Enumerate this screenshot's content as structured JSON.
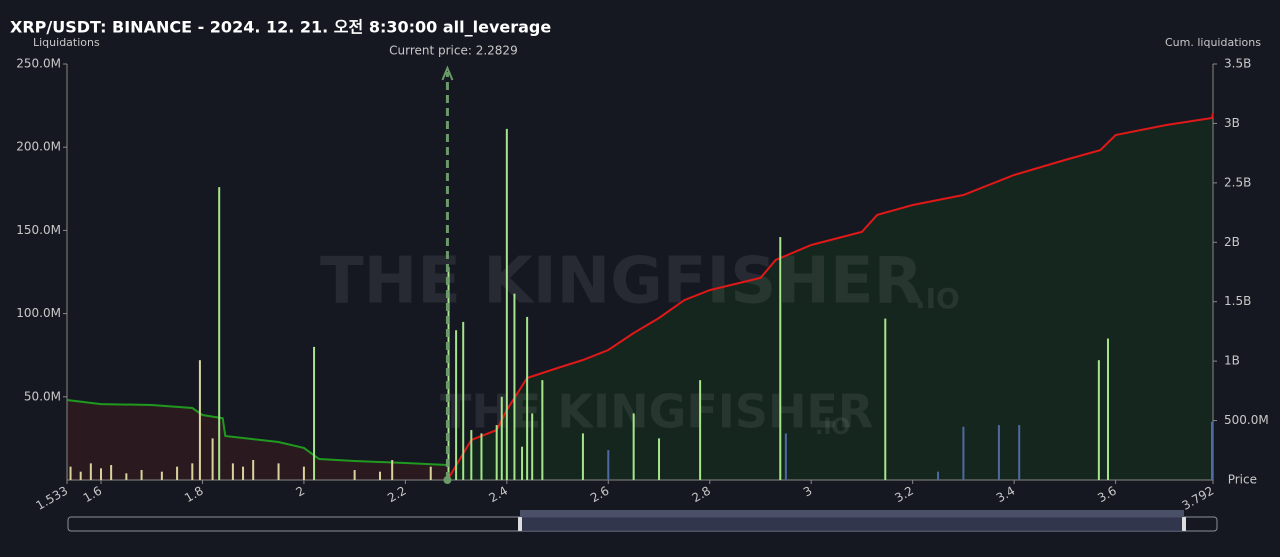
{
  "chart_data": {
    "type": "liquidation",
    "title": "XRP/USDT: BINANCE - 2024. 12. 21. 오전 8:30:00 all_leverage",
    "ylabel": "Liquidations",
    "y2label": "Cum. liquidations",
    "xlabel": "Price",
    "current_price_label": "Current price: 2.2829",
    "current_price": 2.2829,
    "watermark": "THE KINGFISHER",
    "watermark_suffix": ".IO",
    "xlim": [
      1.533,
      3.792
    ],
    "xticks": [
      1.533,
      1.6,
      1.8,
      2,
      2.2,
      2.4,
      2.6,
      2.8,
      3,
      3.2,
      3.4,
      3.6,
      3.792
    ],
    "ylim": [
      0,
      250000000
    ],
    "yticks": [
      {
        "value": 50000000,
        "label": "50.0M"
      },
      {
        "value": 100000000,
        "label": "100.0M"
      },
      {
        "value": 150000000,
        "label": "150.0M"
      },
      {
        "value": 200000000,
        "label": "200.0M"
      },
      {
        "value": 250000000,
        "label": "250.0M"
      }
    ],
    "y2lim": [
      0,
      3500000000
    ],
    "y2ticks": [
      {
        "value": 500000000,
        "label": "500.0M"
      },
      {
        "value": 1000000000,
        "label": "1B"
      },
      {
        "value": 1500000000,
        "label": "1.5B"
      },
      {
        "value": 2000000000,
        "label": "2B"
      },
      {
        "value": 2500000000,
        "label": "2.5B"
      },
      {
        "value": 3000000000,
        "label": "3B"
      },
      {
        "value": 3500000000,
        "label": "3.5B"
      }
    ],
    "series": [
      {
        "type": "bar",
        "color": "#d9d49b",
        "x": [
          1.54,
          1.56,
          1.58,
          1.6,
          1.62,
          1.65,
          1.68,
          1.72,
          1.75,
          1.78,
          1.795,
          1.82,
          1.86,
          1.88,
          1.9,
          1.95,
          2.0,
          2.1,
          2.15,
          2.174,
          2.25
        ],
        "values": [
          8000000,
          5000000,
          10000000,
          7000000,
          9000000,
          4000000,
          6000000,
          5000000,
          8000000,
          10000000,
          72000000,
          25000000,
          10000000,
          8000000,
          12000000,
          10000000,
          8000000,
          6000000,
          5000000,
          12000000,
          8000000
        ]
      },
      {
        "type": "bar",
        "color": "#a6e58c",
        "x": [
          1.833,
          2.02,
          2.285,
          2.3,
          2.314,
          2.33,
          2.35,
          2.38,
          2.39,
          2.4,
          2.415,
          2.43,
          2.44,
          2.45,
          2.47,
          2.55,
          2.65,
          2.7,
          2.781,
          2.939,
          3.146,
          3.567,
          3.585
        ],
        "values": [
          176000000,
          80000000,
          128000000,
          90000000,
          95000000,
          30000000,
          28000000,
          33000000,
          50000000,
          211000000,
          112000000,
          20000000,
          98000000,
          40000000,
          60000000,
          28000000,
          40000000,
          25000000,
          60000000,
          146000000,
          97000000,
          72000000,
          85000000
        ]
      },
      {
        "type": "bar",
        "color": "#4e6aa0",
        "x": [
          2.6,
          2.95,
          3.25,
          3.3,
          3.37,
          3.41,
          3.79
        ],
        "values": [
          18000000,
          28000000,
          5000000,
          32000000,
          33000000,
          33000000,
          35000000
        ]
      },
      {
        "type": "line",
        "axis": "y2",
        "color": "#1f9a1f",
        "fill": "#2e1a20",
        "x": [
          1.533,
          1.6,
          1.7,
          1.78,
          1.8,
          1.84,
          1.845,
          1.95,
          2.0,
          2.03,
          2.1,
          2.2,
          2.283
        ],
        "values": [
          673000000,
          639000000,
          631000000,
          606000000,
          547000000,
          520000000,
          370000000,
          320000000,
          270000000,
          177000000,
          160000000,
          143000000,
          126000000
        ]
      },
      {
        "type": "line",
        "axis": "y2",
        "color": "#e01818",
        "fill": "#15281e",
        "x": [
          2.283,
          2.33,
          2.38,
          2.4,
          2.44,
          2.5,
          2.55,
          2.6,
          2.65,
          2.7,
          2.75,
          2.8,
          2.9,
          2.93,
          3.0,
          3.1,
          3.13,
          3.2,
          3.3,
          3.4,
          3.5,
          3.57,
          3.6,
          3.7,
          3.79,
          3.792
        ],
        "values": [
          0,
          337000000,
          420000000,
          589000000,
          858000000,
          942000000,
          1010000000,
          1094000000,
          1237000000,
          1363000000,
          1514000000,
          1598000000,
          1700000000,
          1851000000,
          1977000000,
          2087000000,
          2230000000,
          2314000000,
          2398000000,
          2566000000,
          2692000000,
          2776000000,
          2903000000,
          2987000000,
          3046000000,
          3087000000
        ]
      }
    ]
  }
}
